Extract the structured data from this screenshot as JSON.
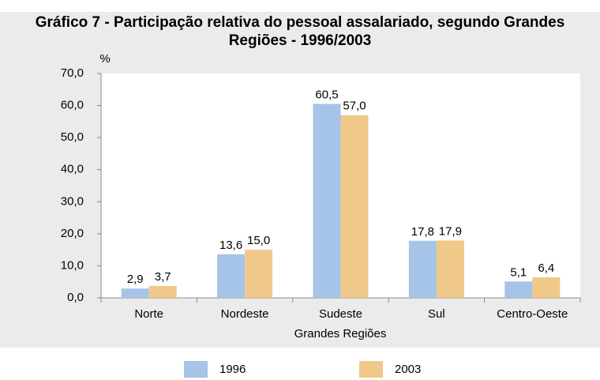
{
  "chart_data": {
    "type": "bar",
    "title": "Gráfico 7 - Participação relativa do pessoal assalariado, segundo Grandes Regiões - 1996/2003",
    "y_label": "%",
    "x_label": "Grandes Regiões",
    "categories": [
      "Norte",
      "Nordeste",
      "Sudeste",
      "Sul",
      "Centro-Oeste"
    ],
    "series": [
      {
        "name": "1996",
        "color": "#a6c3e8",
        "values": [
          2.9,
          13.6,
          60.5,
          17.8,
          5.1
        ],
        "value_labels": [
          "2,9",
          "13,6",
          "60,5",
          "17,8",
          "5,1"
        ]
      },
      {
        "name": "2003",
        "color": "#f0c88a",
        "values": [
          3.7,
          15.0,
          57.0,
          17.9,
          6.4
        ],
        "value_labels": [
          "3,7",
          "15,0",
          "57,0",
          "17,9",
          "6,4"
        ]
      }
    ],
    "ylim": [
      0,
      70
    ],
    "yticks": [
      {
        "value": 0,
        "label": "0,0"
      },
      {
        "value": 10,
        "label": "10,0"
      },
      {
        "value": 20,
        "label": "20,0"
      },
      {
        "value": 30,
        "label": "30,0"
      },
      {
        "value": 40,
        "label": "40,0"
      },
      {
        "value": 50,
        "label": "50,0"
      },
      {
        "value": 60,
        "label": "60,0"
      },
      {
        "value": 70,
        "label": "70,0"
      }
    ],
    "legend": "bottom"
  }
}
